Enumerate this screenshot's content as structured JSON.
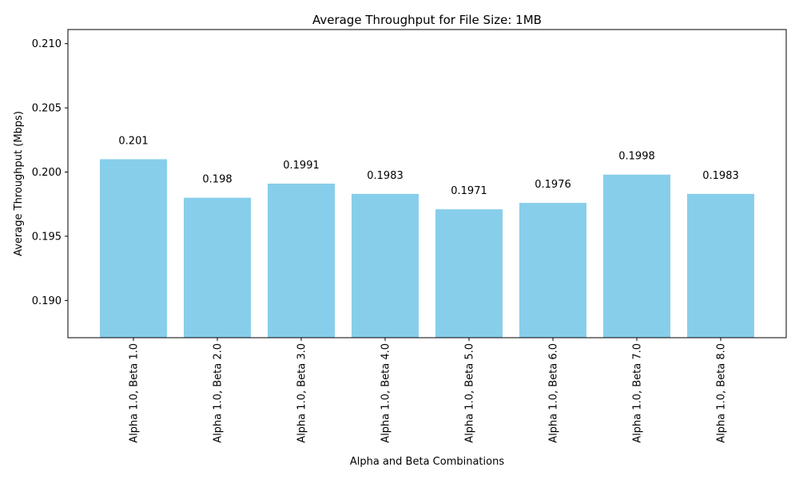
{
  "chart_data": {
    "type": "bar",
    "title": "Average Throughput for File Size: 1MB",
    "xlabel": "Alpha and Beta Combinations",
    "ylabel": "Average Throughput (Mbps)",
    "categories": [
      "Alpha 1.0, Beta 1.0",
      "Alpha 1.0, Beta 2.0",
      "Alpha 1.0, Beta 3.0",
      "Alpha 1.0, Beta 4.0",
      "Alpha 1.0, Beta 5.0",
      "Alpha 1.0, Beta 6.0",
      "Alpha 1.0, Beta 7.0",
      "Alpha 1.0, Beta 8.0"
    ],
    "values": [
      0.201,
      0.198,
      0.1991,
      0.1983,
      0.1971,
      0.1976,
      0.1998,
      0.1983
    ],
    "data_labels": [
      "0.201",
      "0.198",
      "0.1991",
      "0.1983",
      "0.1971",
      "0.1976",
      "0.1998",
      "0.1983"
    ],
    "ylim": [
      0.1871,
      0.2111
    ],
    "yticks": [
      0.19,
      0.195,
      0.2,
      0.205,
      0.21
    ],
    "ytick_labels": [
      "0.190",
      "0.195",
      "0.200",
      "0.205",
      "0.210"
    ],
    "bar_color": "#87CEEB",
    "grid": false
  }
}
